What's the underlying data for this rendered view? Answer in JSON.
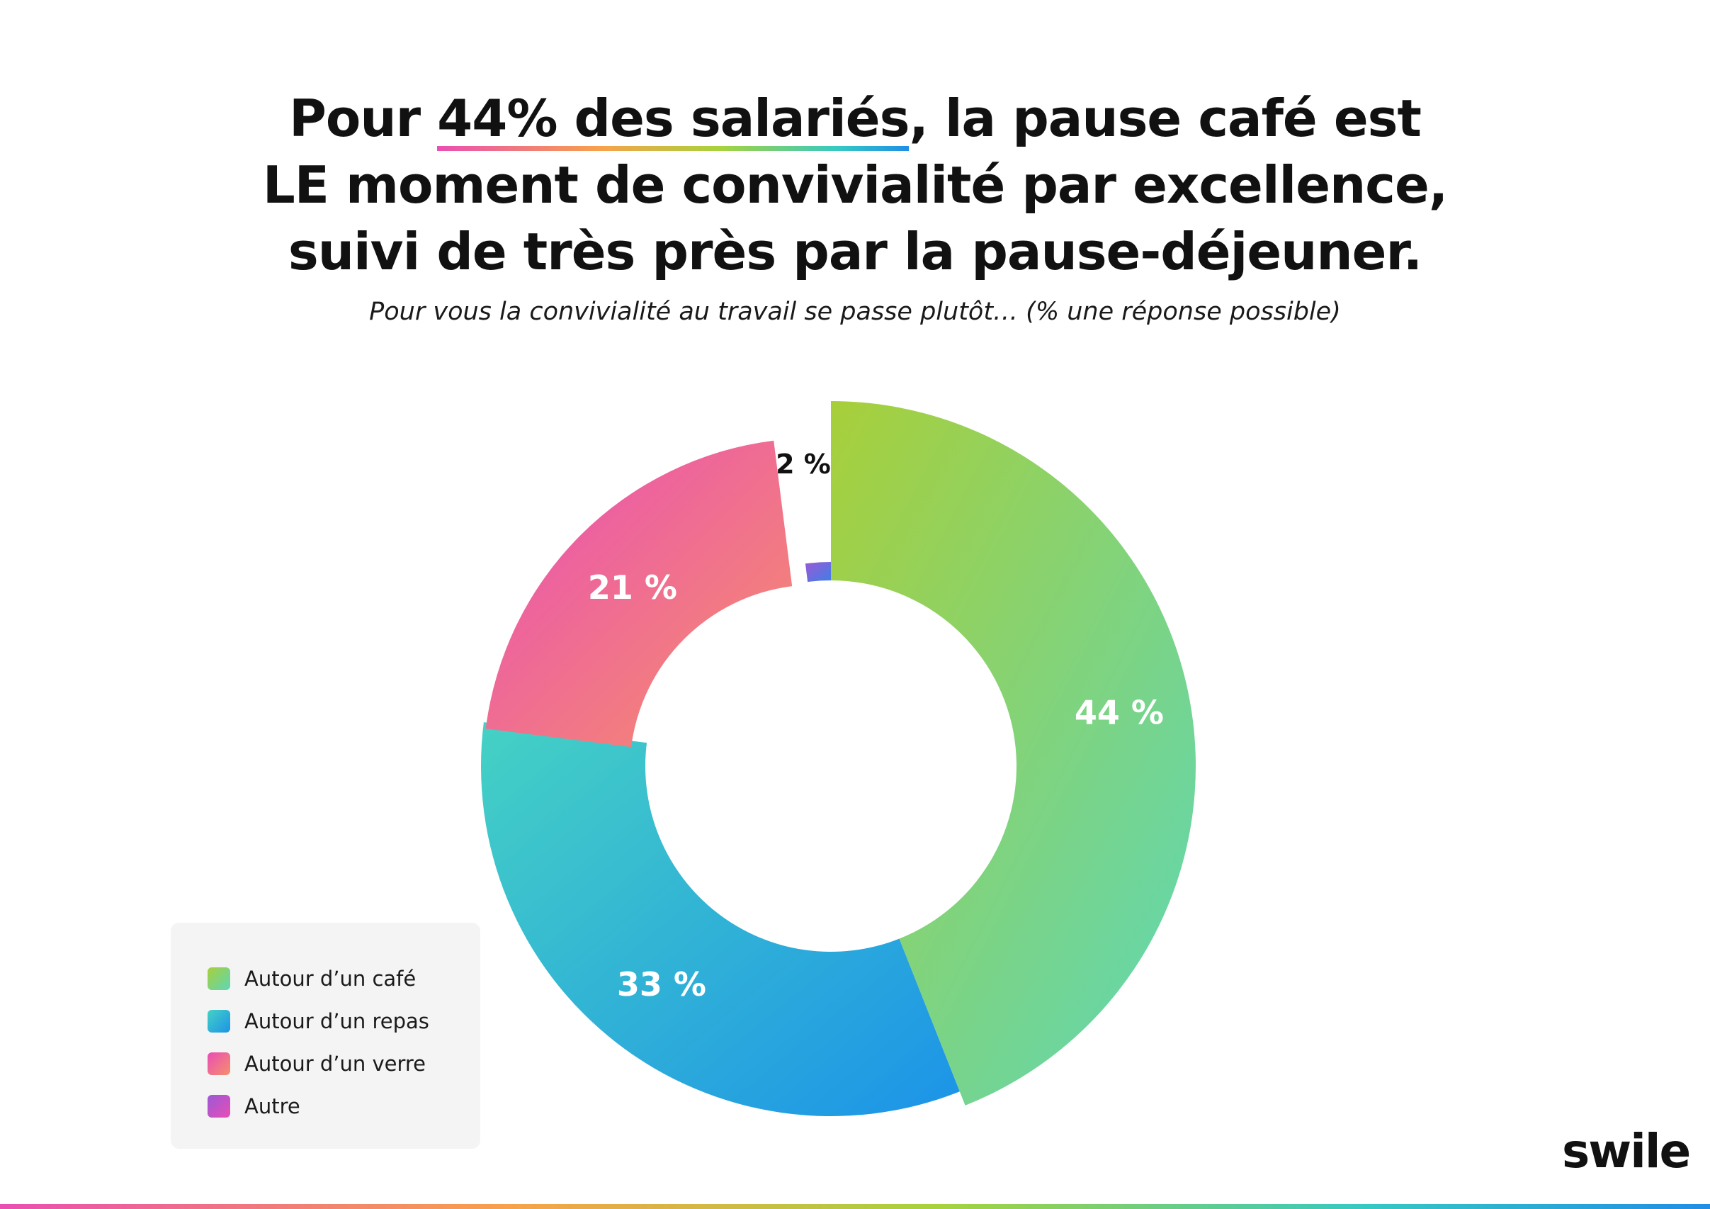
{
  "header": {
    "headline_prefix": "Pour ",
    "headline_highlight": "44% des salariés",
    "headline_rest_1": ", la pause café est",
    "headline_line_2": "LE moment de convivialité par excellence,",
    "headline_line_3": "suivi de très près par la pause-déjeuner.",
    "subtitle": "Pour vous la convivialité au travail se passe plutôt… (% une réponse possible)"
  },
  "chart_data": {
    "type": "pie",
    "variant": "donut-exploded",
    "slices": [
      {
        "name": "Autour d’un café",
        "value": 44,
        "label": "44 %",
        "colors": [
          "#a8cf3a",
          "#5dd7b8"
        ]
      },
      {
        "name": "Autour d’un repas",
        "value": 33,
        "label": "33 %",
        "colors": [
          "#45d1c4",
          "#1c93e8"
        ]
      },
      {
        "name": "Autour d’un verre",
        "value": 21,
        "label": "21 %",
        "colors": [
          "#e94db6",
          "#f6906a"
        ]
      },
      {
        "name": "Autre",
        "value": 2,
        "label": "2 %",
        "colors": [
          "#9b59d6",
          "#3e7fe6"
        ]
      }
    ],
    "legend_position": "bottom-left"
  },
  "legend": {
    "items": [
      {
        "label": "Autour d’un café",
        "colors": [
          "#a8cf3a",
          "#5dd7b8"
        ]
      },
      {
        "label": "Autour d’un repas",
        "colors": [
          "#45d1c4",
          "#1c93e8"
        ]
      },
      {
        "label": "Autour d’un verre",
        "colors": [
          "#e94db6",
          "#f6906a"
        ]
      },
      {
        "label": "Autre",
        "colors": [
          "#9b59d6",
          "#e94db6"
        ]
      }
    ]
  },
  "brand": {
    "logo_text": "swile"
  }
}
